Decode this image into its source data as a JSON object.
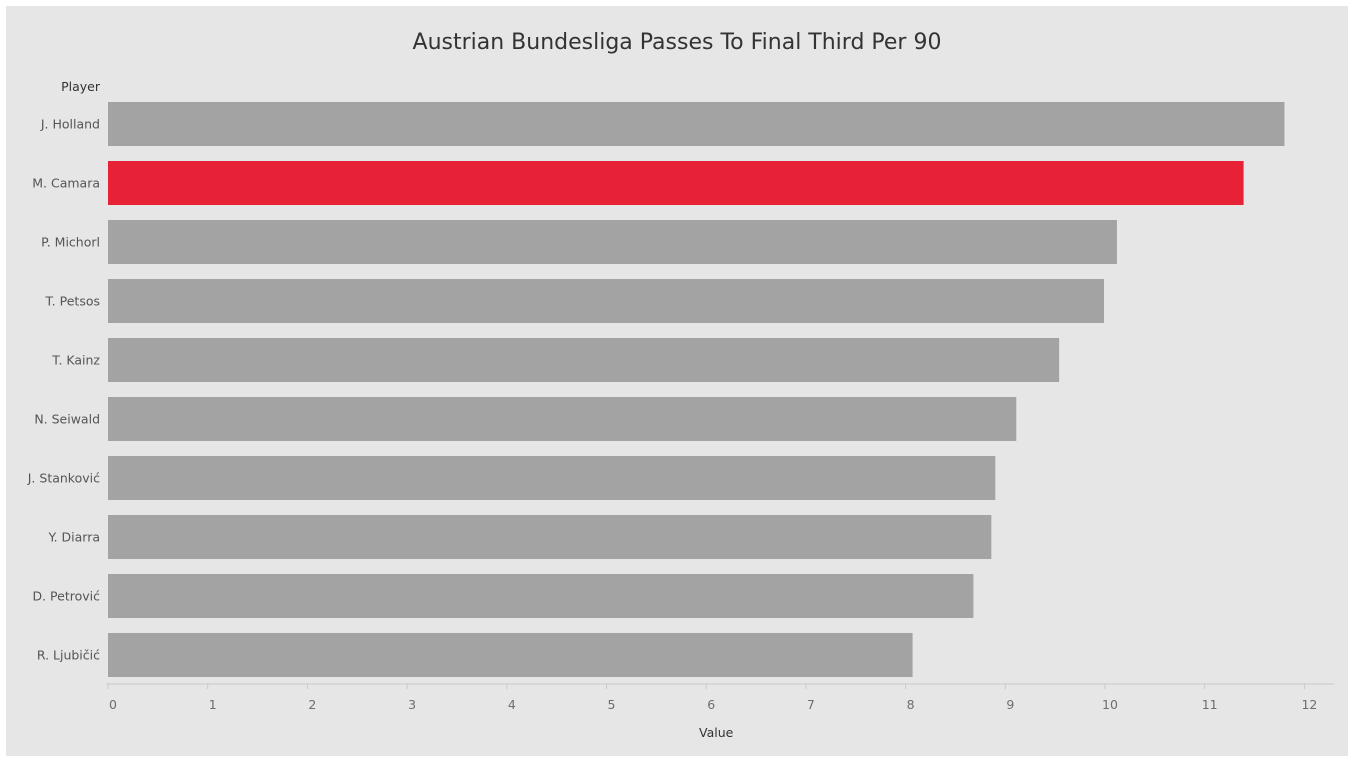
{
  "chart_data": {
    "type": "bar",
    "orientation": "horizontal",
    "title": "Austrian Bundesliga Passes To Final Third Per 90",
    "category_axis_title": "Player",
    "xlabel": "Value",
    "categories": [
      "J. Holland",
      "M. Camara",
      "P. Michorl",
      "T. Petsos",
      "T. Kainz",
      "N. Seiwald",
      "J. Stanković",
      "Y. Diarra",
      "D. Petrović",
      "R. Ljubičić"
    ],
    "values": [
      11.8,
      11.39,
      10.12,
      9.99,
      9.54,
      9.11,
      8.9,
      8.86,
      8.68,
      8.07
    ],
    "xlim": [
      0,
      12.3
    ],
    "ticks": [
      "0",
      "1",
      "2",
      "3",
      "4",
      "5",
      "6",
      "7",
      "8",
      "9",
      "10",
      "11",
      "12"
    ],
    "highlight": "M. Camara",
    "bar_color": "#a3a3a3",
    "highlight_color": "#e82236",
    "background_color": "#e6e6e6",
    "grid": false
  }
}
